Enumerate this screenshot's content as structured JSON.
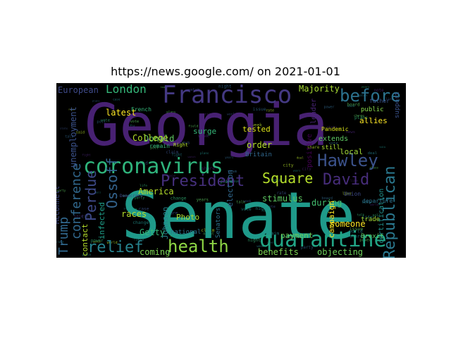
{
  "figure": {
    "title": "https://news.google.com/ on 2021-01-01",
    "background": "#000000"
  },
  "words": [
    {
      "text": "Georgia",
      "color": "#482173",
      "weight": 1.0
    },
    {
      "text": "Senate",
      "color": "#1f9a8a",
      "weight": 0.95
    },
    {
      "text": "Francisco",
      "color": "#443983",
      "weight": 0.55
    },
    {
      "text": "coronavirus",
      "color": "#2fb47c",
      "weight": 0.5
    },
    {
      "text": "quarantine",
      "color": "#21a585",
      "weight": 0.45
    },
    {
      "text": "health",
      "color": "#8ed645",
      "weight": 0.42
    },
    {
      "text": "relief",
      "color": "#26828e",
      "weight": 0.4
    },
    {
      "text": "Hawley",
      "color": "#3b528b",
      "weight": 0.4
    },
    {
      "text": "before",
      "color": "#2c728e",
      "weight": 0.38
    },
    {
      "text": "President",
      "color": "#46307e",
      "weight": 0.35
    },
    {
      "text": "David",
      "color": "#472d7b",
      "weight": 0.33
    },
    {
      "text": "Republican",
      "color": "#2a788e",
      "weight": 0.32
    },
    {
      "text": "Ossoff",
      "color": "#33638d",
      "weight": 0.3
    },
    {
      "text": "Perdue",
      "color": "#3e4a89",
      "weight": 0.3
    },
    {
      "text": "Trump",
      "color": "#31688e",
      "weight": 0.28
    },
    {
      "text": "conference",
      "color": "#31688e",
      "weight": 0.28
    },
    {
      "text": "Square",
      "color": "#b5de2b",
      "weight": 0.26
    },
    {
      "text": "London",
      "color": "#35b779",
      "weight": 0.22
    },
    {
      "text": "European",
      "color": "#3e4a89",
      "weight": 0.2
    },
    {
      "text": "Majority",
      "color": "#a8db34",
      "weight": 0.2
    },
    {
      "text": "latest",
      "color": "#fde725",
      "weight": 0.18
    },
    {
      "text": "Donald",
      "color": "#5ec962",
      "weight": 0.16
    },
    {
      "text": "America",
      "color": "#b5de2b",
      "weight": 0.16
    },
    {
      "text": "College",
      "color": "#b5de2b",
      "weight": 0.15
    },
    {
      "text": "tested",
      "color": "#dde318",
      "weight": 0.14
    },
    {
      "text": "order",
      "color": "#b5de2b",
      "weight": 0.15
    },
    {
      "text": "Getty",
      "color": "#35b779",
      "weight": 0.15
    },
    {
      "text": "coming",
      "color": "#7ad151",
      "weight": 0.14
    },
    {
      "text": "benefits",
      "color": "#7ad151",
      "weight": 0.14
    },
    {
      "text": "objecting",
      "color": "#6ccd5a",
      "weight": 0.14
    },
    {
      "text": "stimulus",
      "color": "#5ec962",
      "weight": 0.14
    },
    {
      "text": "allies",
      "color": "#fde725",
      "weight": 0.14
    },
    {
      "text": "local",
      "color": "#a2da37",
      "weight": 0.14
    },
    {
      "text": "during",
      "color": "#44bf70",
      "weight": 0.14
    },
    {
      "text": "someone",
      "color": "#fde725",
      "weight": 0.13
    },
    {
      "text": "payment",
      "color": "#6ccd5a",
      "weight": 0.12
    },
    {
      "text": "races",
      "color": "#b5de2b",
      "weight": 0.13
    },
    {
      "text": "contact",
      "color": "#b5de2b",
      "weight": 0.12
    },
    {
      "text": "infected",
      "color": "#1f9e89",
      "weight": 0.12
    },
    {
      "text": "Photo",
      "color": "#aadc32",
      "weight": 0.12
    },
    {
      "text": "Johnson",
      "color": "#26828e",
      "weight": 0.12
    },
    {
      "text": "surge",
      "color": "#35b779",
      "weight": 0.12
    },
    {
      "text": "campaign",
      "color": "#fde725",
      "weight": 0.12
    },
    {
      "text": "unemployment",
      "color": "#3b528b",
      "weight": 0.14
    },
    {
      "text": "McConnell",
      "color": "#3e4a89",
      "weight": 0.12
    },
    {
      "text": "election",
      "color": "#31688e",
      "weight": 0.12
    },
    {
      "text": "certification",
      "color": "#21918c",
      "weight": 0.11
    },
    {
      "text": "positive",
      "color": "#440154",
      "weight": 0.11
    },
    {
      "text": "leader",
      "color": "#482475",
      "weight": 0.1
    },
    {
      "text": "extends",
      "color": "#5ec962",
      "weight": 0.1
    },
    {
      "text": "Senators",
      "color": "#2c728e",
      "weight": 0.09
    },
    {
      "text": "national",
      "color": "#2c728e",
      "weight": 0.09
    },
    {
      "text": "Britain",
      "color": "#31688e",
      "weight": 0.09
    },
    {
      "text": "support",
      "color": "#3b528b",
      "weight": 0.09
    },
    {
      "text": "Brexit",
      "color": "#5ec962",
      "weight": 0.09
    },
    {
      "text": "trade",
      "color": "#a8db34",
      "weight": 0.09
    },
    {
      "text": "public",
      "color": "#84d44b",
      "weight": 0.08
    },
    {
      "text": "still",
      "color": "#aadc32",
      "weight": 0.08
    },
    {
      "text": "Pandemic",
      "color": "#d8e219",
      "weight": 0.08
    },
    {
      "text": "Union",
      "color": "#3e4a89",
      "weight": 0.08
    },
    {
      "text": "father",
      "color": "#3b528b",
      "weight": 0.07
    },
    {
      "text": "departure",
      "color": "#2c728e",
      "weight": 0.07
    },
    {
      "text": "remain",
      "color": "#35b779",
      "weight": 0.07
    },
    {
      "text": "French",
      "color": "#35b779",
      "weight": 0.07
    },
    {
      "text": "Right",
      "color": "#b5de2b",
      "weight": 0.06
    },
    {
      "text": "Democrats",
      "color": "#3e4a89",
      "weight": 0.06
    }
  ]
}
